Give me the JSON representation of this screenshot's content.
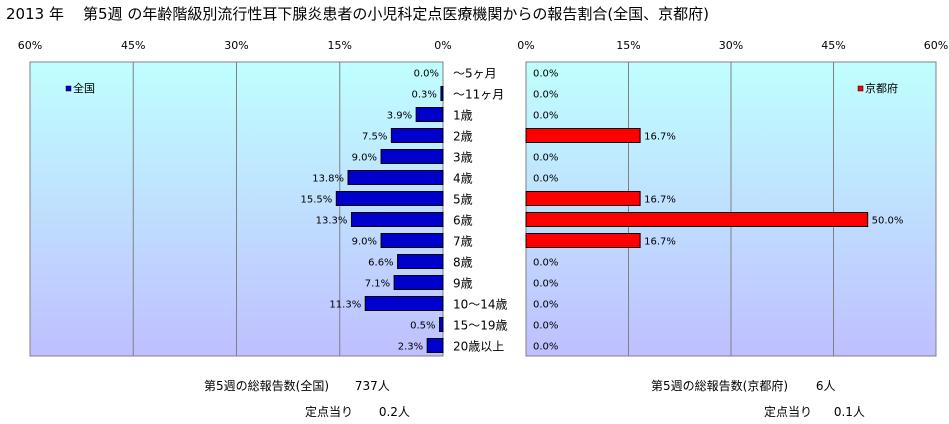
{
  "title": "2013 年    第5週 の年齢階級別流行性耳下腺炎患者の小児科定点医療機関からの報告割合(全国、京都府)",
  "chart_data": [
    {
      "type": "bar",
      "orientation": "horizontal",
      "direction": "right-to-left",
      "series": [
        {
          "name": "全国",
          "color": "#0000CC",
          "values": [
            0.0,
            0.3,
            3.9,
            7.5,
            9.0,
            13.8,
            15.5,
            13.3,
            9.0,
            6.6,
            7.1,
            11.3,
            0.5,
            2.3
          ]
        }
      ],
      "value_labels": [
        "0.0%",
        "0.3%",
        "3.9%",
        "7.5%",
        "9.0%",
        "13.8%",
        "15.5%",
        "13.3%",
        "9.0%",
        "6.6%",
        "7.1%",
        "11.3%",
        "0.5%",
        "2.3%"
      ],
      "xlim": [
        0,
        60
      ],
      "ticks": [
        "60%",
        "45%",
        "30%",
        "15%",
        "0%"
      ],
      "grid": true,
      "legend": "top-left",
      "background": "#BFFFFF"
    },
    {
      "type": "bar",
      "orientation": "horizontal",
      "direction": "left-to-right",
      "series": [
        {
          "name": "京都府",
          "color": "#FF0000",
          "values": [
            0.0,
            0.0,
            0.0,
            16.7,
            0.0,
            0.0,
            16.7,
            50.0,
            16.7,
            0.0,
            0.0,
            0.0,
            0.0,
            0.0
          ]
        }
      ],
      "value_labels": [
        "0.0%",
        "0.0%",
        "0.0%",
        "16.7%",
        "0.0%",
        "0.0%",
        "16.7%",
        "50.0%",
        "16.7%",
        "0.0%",
        "0.0%",
        "0.0%",
        "0.0%",
        "0.0%"
      ],
      "xlim": [
        0,
        60
      ],
      "ticks": [
        "0%",
        "15%",
        "30%",
        "45%",
        "60%"
      ],
      "grid": true,
      "legend": "top-right",
      "background": "#BFFFFF"
    }
  ],
  "categories": [
    "～5ヶ月",
    "～11ヶ月",
    "1歳",
    "2歳",
    "3歳",
    "4歳",
    "5歳",
    "6歳",
    "7歳",
    "8歳",
    "9歳",
    "10～14歳",
    "15～19歳",
    "20歳以上"
  ],
  "summary": {
    "national_label": "第5週の総報告数(全国)",
    "national_count": "737人",
    "national_per_label": "定点当り",
    "national_per_value": "0.2人",
    "kyoto_label": "第5週の総報告数(京都府)",
    "kyoto_count": "6人",
    "kyoto_per_label": "定点当り",
    "kyoto_per_value": "0.1人"
  }
}
